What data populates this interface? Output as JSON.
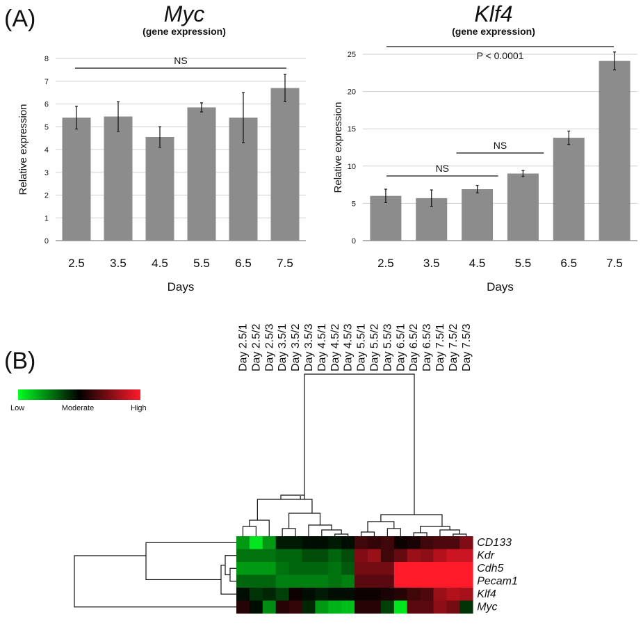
{
  "panel_a_label": "(A)",
  "panel_b_label": "(B)",
  "chart_data": [
    {
      "type": "bar",
      "title": "Myc",
      "subtitle": "(gene expression)",
      "xlabel": "Days",
      "ylabel": "Relative expression",
      "categories": [
        "2.5",
        "3.5",
        "4.5",
        "5.5",
        "6.5",
        "7.5"
      ],
      "values": [
        5.4,
        5.45,
        4.55,
        5.85,
        5.4,
        6.7
      ],
      "errors": [
        0.5,
        0.65,
        0.45,
        0.2,
        1.1,
        0.6
      ],
      "ylim": [
        0,
        8
      ],
      "yticks": [
        "0",
        "1",
        "2",
        "3",
        "4",
        "5",
        "6",
        "7",
        "8"
      ],
      "grid": true,
      "bar_color": "#8c8c8c",
      "annotations": [
        {
          "text": "NS",
          "from": "2.5",
          "to": "7.5"
        }
      ]
    },
    {
      "type": "bar",
      "title": "Klf4",
      "subtitle": "(gene expression)",
      "xlabel": "Days",
      "ylabel": "Relative expression",
      "categories": [
        "2.5",
        "3.5",
        "4.5",
        "5.5",
        "6.5",
        "7.5"
      ],
      "values": [
        6.0,
        5.7,
        6.9,
        9.0,
        13.8,
        24.1
      ],
      "errors": [
        0.9,
        1.1,
        0.5,
        0.4,
        0.9,
        1.2
      ],
      "ylim": [
        0,
        25
      ],
      "yticks": [
        "0",
        "5",
        "10",
        "15",
        "20",
        "25"
      ],
      "grid": true,
      "bar_color": "#8c8c8c",
      "annotations": [
        {
          "text": "P < 0.0001",
          "from": "2.5",
          "to": "7.5"
        },
        {
          "text": "NS",
          "from": "2.5",
          "to": "4.5"
        },
        {
          "text": "NS",
          "from": "4.5",
          "to": "5.5"
        }
      ]
    },
    {
      "type": "heatmap",
      "columns": [
        "Day 2.5/1",
        "Day 2.5/2",
        "Day 2.5/3",
        "Day 3.5/1",
        "Day 3.5/2",
        "Day 3.5/3",
        "Day 4.5/1",
        "Day 4.5/2",
        "Day 4.5/3",
        "Day 5.5/1",
        "Day 5.5/2",
        "Day 5.5/3",
        "Day 6.5/1",
        "Day 6.5/2",
        "Day 6.5/3",
        "Day 7.5/1",
        "Day 7.5/2",
        "Day 7.5/3"
      ],
      "rows": [
        "CD133",
        "Kdr",
        "Cdh5",
        "Pecam1",
        "Klf4",
        "Myc"
      ],
      "values": [
        [
          -0.6,
          -0.9,
          -0.6,
          -0.1,
          -0.1,
          -0.05,
          -0.05,
          -0.1,
          -0.05,
          0.25,
          0.2,
          0.25,
          0.05,
          0.1,
          0.25,
          0.3,
          0.3,
          0.5
        ],
        [
          -0.45,
          -0.45,
          -0.45,
          -0.4,
          -0.4,
          -0.3,
          -0.3,
          -0.4,
          -0.3,
          0.5,
          0.6,
          0.25,
          0.4,
          0.6,
          0.55,
          0.7,
          0.8,
          0.8
        ],
        [
          -0.6,
          -0.6,
          -0.6,
          -0.45,
          -0.4,
          -0.4,
          -0.4,
          -0.45,
          -0.35,
          0.45,
          0.45,
          0.45,
          1.0,
          1.0,
          1.0,
          1.0,
          1.0,
          1.0
        ],
        [
          -0.4,
          -0.4,
          -0.4,
          -0.5,
          -0.5,
          -0.5,
          -0.5,
          -0.45,
          -0.5,
          0.35,
          0.35,
          0.35,
          1.0,
          1.0,
          1.0,
          1.0,
          1.0,
          1.0
        ],
        [
          -0.05,
          -0.2,
          -0.15,
          -0.25,
          0.05,
          -0.05,
          -0.1,
          -0.05,
          -0.05,
          0.05,
          0.05,
          0.1,
          0.15,
          0.25,
          0.3,
          0.6,
          0.7,
          0.65
        ],
        [
          0.15,
          -0.05,
          -0.55,
          0.15,
          0.2,
          -0.15,
          -0.6,
          -0.7,
          -0.75,
          0.15,
          0.15,
          -0.25,
          -0.9,
          0.35,
          0.35,
          0.55,
          0.45,
          -0.2
        ]
      ],
      "scale_colors": {
        "low": "#00ff22",
        "moderate": "#000000",
        "high": "#ff1a2a"
      },
      "legend_labels": {
        "low": "Low",
        "moderate": "Moderate",
        "high": "High"
      }
    }
  ]
}
